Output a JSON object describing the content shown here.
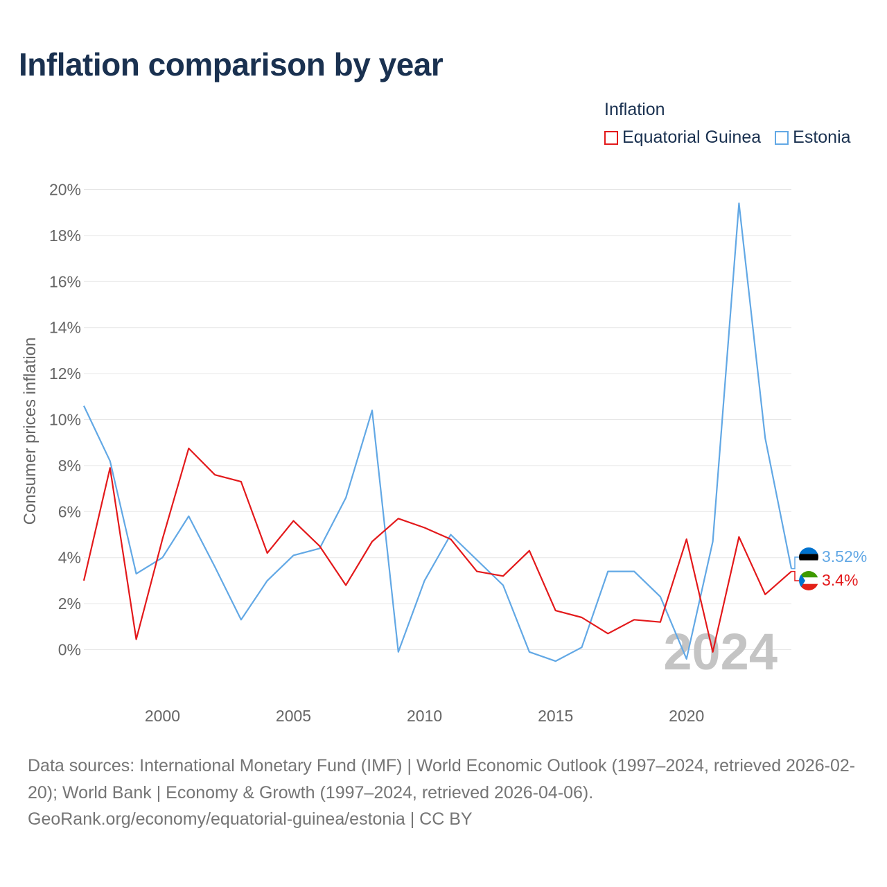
{
  "title": "Inflation comparison by year",
  "legend": {
    "title": "Inflation",
    "items": [
      {
        "label": "Equatorial Guinea",
        "color": "#e3191b"
      },
      {
        "label": "Estonia",
        "color": "#62a8e5"
      }
    ]
  },
  "chart_data": {
    "type": "line",
    "ylabel": "Consumer prices inflation",
    "xlabel": "",
    "ylim": [
      -2.2,
      20
    ],
    "xlim": [
      1997,
      2024
    ],
    "y_ticks": [
      0,
      2,
      4,
      6,
      8,
      10,
      12,
      14,
      16,
      18,
      20
    ],
    "y_tick_labels": [
      "0%",
      "2%",
      "4%",
      "6%",
      "8%",
      "10%",
      "12%",
      "14%",
      "16%",
      "18%",
      "20%"
    ],
    "x_ticks": [
      2000,
      2005,
      2010,
      2015,
      2020
    ],
    "x_tick_labels": [
      "2000",
      "2005",
      "2010",
      "2015",
      "2020"
    ],
    "x": [
      1997,
      1998,
      1999,
      2000,
      2001,
      2002,
      2003,
      2004,
      2005,
      2006,
      2007,
      2008,
      2009,
      2010,
      2011,
      2012,
      2013,
      2014,
      2015,
      2016,
      2017,
      2018,
      2019,
      2020,
      2021,
      2022,
      2023,
      2024
    ],
    "series": [
      {
        "name": "Equatorial Guinea",
        "color": "#e3191b",
        "values": [
          3.0,
          7.9,
          0.45,
          4.8,
          8.75,
          7.6,
          7.3,
          4.2,
          5.6,
          4.5,
          2.8,
          4.7,
          5.7,
          5.3,
          4.8,
          3.4,
          3.2,
          4.3,
          1.7,
          1.4,
          0.7,
          1.3,
          1.2,
          4.8,
          -0.1,
          4.9,
          2.4,
          3.4
        ]
      },
      {
        "name": "Estonia",
        "color": "#62a8e5",
        "values": [
          10.6,
          8.2,
          3.3,
          4.0,
          5.8,
          3.6,
          1.3,
          3.0,
          4.1,
          4.4,
          6.6,
          10.4,
          -0.1,
          3.0,
          5.0,
          3.9,
          2.8,
          -0.1,
          -0.5,
          0.1,
          3.4,
          3.4,
          2.3,
          -0.4,
          4.7,
          19.4,
          9.2,
          3.52
        ]
      }
    ],
    "end_labels": [
      {
        "series": "Estonia",
        "text": "3.52%"
      },
      {
        "series": "Equatorial Guinea",
        "text": "3.4%"
      }
    ],
    "year_watermark": "2024"
  },
  "footer": {
    "sources": "Data sources: International Monetary Fund (IMF) | World Economic Outlook (1997–2024, retrieved 2026-02-20); World Bank | Economy & Growth (1997–2024, retrieved 2026-04-06).",
    "link": "GeoRank.org/economy/equatorial-guinea/estonia | CC BY"
  }
}
